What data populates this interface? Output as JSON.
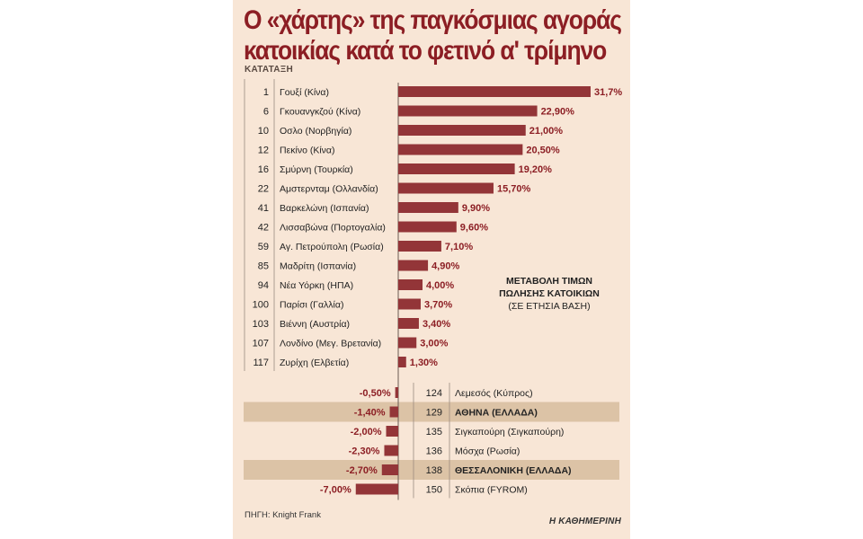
{
  "title_line1": "Ο «χάρτης» της παγκόσμιας αγοράς",
  "title_line2": "κατοικίας κατά το φετινό α' τρίμηνο",
  "rank_header": "ΚΑΤΑΤΑΞΗ",
  "source": "ΠΗΓΗ: Knight Frank",
  "brand": "Η ΚΑΘΗΜΕΡΙΝΗ",
  "colors": {
    "bar": "#933538",
    "title": "#8c1e24",
    "highlight": "#dcc3a6",
    "background": "#f8e6d6"
  },
  "chart_data": {
    "type": "bar",
    "orientation": "horizontal",
    "annotation": [
      "ΜΕΤΑΒΟΛΗ ΤΙΜΩΝ",
      "ΠΩΛΗΣΗΣ ΚΑΤΟΙΚΙΩΝ",
      "(ΣΕ ΕΤΗΣΙΑ ΒΑΣΗ)"
    ],
    "positive": [
      {
        "rank": "1",
        "city": "Γουξί (Κίνα)",
        "value": 31.7,
        "label": "31,7%"
      },
      {
        "rank": "6",
        "city": "Γκουανγκζού (Κίνα)",
        "value": 22.9,
        "label": "22,90%"
      },
      {
        "rank": "10",
        "city": "Οσλο (Νορβηγία)",
        "value": 21.0,
        "label": "21,00%"
      },
      {
        "rank": "12",
        "city": "Πεκίνο (Κίνα)",
        "value": 20.5,
        "label": "20,50%"
      },
      {
        "rank": "16",
        "city": "Σμύρνη (Τουρκία)",
        "value": 19.2,
        "label": "19,20%"
      },
      {
        "rank": "22",
        "city": "Αμστερνταμ (Ολλανδία)",
        "value": 15.7,
        "label": "15,70%"
      },
      {
        "rank": "41",
        "city": "Βαρκελώνη (Ισπανία)",
        "value": 9.9,
        "label": "9,90%"
      },
      {
        "rank": "42",
        "city": "Λισσαβώνα (Πορτογαλία)",
        "value": 9.6,
        "label": "9,60%"
      },
      {
        "rank": "59",
        "city": "Αγ. Πετρούπολη (Ρωσία)",
        "value": 7.1,
        "label": "7,10%"
      },
      {
        "rank": "85",
        "city": "Μαδρίτη (Ισπανία)",
        "value": 4.9,
        "label": "4,90%"
      },
      {
        "rank": "94",
        "city": "Νέα Υόρκη (ΗΠΑ)",
        "value": 4.0,
        "label": "4,00%"
      },
      {
        "rank": "100",
        "city": "Παρίσι (Γαλλία)",
        "value": 3.7,
        "label": "3,70%"
      },
      {
        "rank": "103",
        "city": "Βιέννη (Αυστρία)",
        "value": 3.4,
        "label": "3,40%"
      },
      {
        "rank": "107",
        "city": "Λονδίνο (Μεγ. Βρετανία)",
        "value": 3.0,
        "label": "3,00%"
      },
      {
        "rank": "117",
        "city": "Ζυρίχη (Ελβετία)",
        "value": 1.3,
        "label": "1,30%"
      }
    ],
    "negative": [
      {
        "rank": "124",
        "city": "Λεμεσός (Κύπρος)",
        "value": -0.5,
        "label": "-0,50%",
        "highlight": false
      },
      {
        "rank": "129",
        "city": "ΑΘΗΝΑ (ΕΛΛΑΔΑ)",
        "value": -1.4,
        "label": "-1,40%",
        "highlight": true
      },
      {
        "rank": "135",
        "city": "Σιγκαπούρη (Σιγκαπούρη)",
        "value": -2.0,
        "label": "-2,00%",
        "highlight": false
      },
      {
        "rank": "136",
        "city": "Μόσχα (Ρωσία)",
        "value": -2.3,
        "label": "-2,30%",
        "highlight": false
      },
      {
        "rank": "138",
        "city": "ΘΕΣΣΑΛΟΝΙΚΗ (ΕΛΛΑΔΑ)",
        "value": -2.7,
        "label": "-2,70%",
        "highlight": true
      },
      {
        "rank": "150",
        "city": "Σκόπια (FYROM)",
        "value": -7.0,
        "label": "-7,00%",
        "highlight": false
      }
    ]
  }
}
